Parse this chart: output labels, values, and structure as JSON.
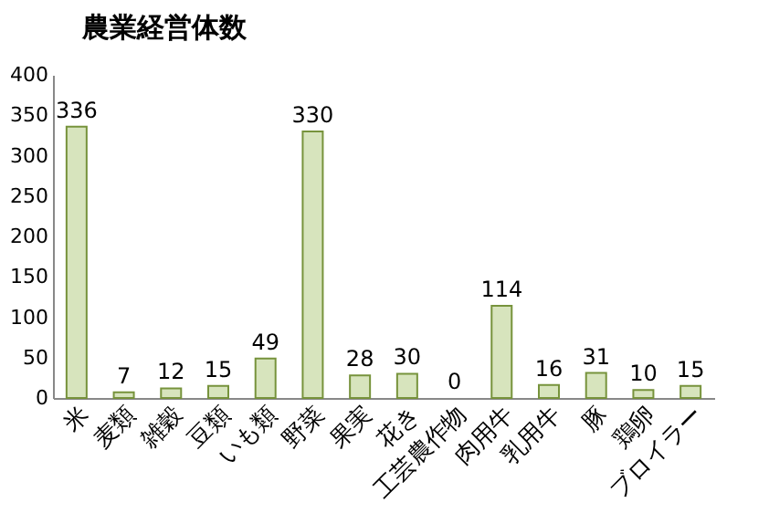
{
  "chart_data": {
    "type": "bar",
    "title": "農業経営体数",
    "categories": [
      "米",
      "麦類",
      "雑穀",
      "豆類",
      "いも類",
      "野菜",
      "果実",
      "花き",
      "工芸農作物",
      "肉用牛",
      "乳用牛",
      "豚",
      "鶏卵",
      "ブロイラー"
    ],
    "values": [
      336,
      7,
      12,
      15,
      49,
      330,
      28,
      30,
      0,
      114,
      16,
      31,
      10,
      15
    ],
    "color": "#d7e4bd",
    "ylim": [
      0,
      400
    ],
    "yticks": [
      0,
      50,
      100,
      150,
      200,
      250,
      300,
      350,
      400
    ],
    "grid": false,
    "data_labels": true
  }
}
